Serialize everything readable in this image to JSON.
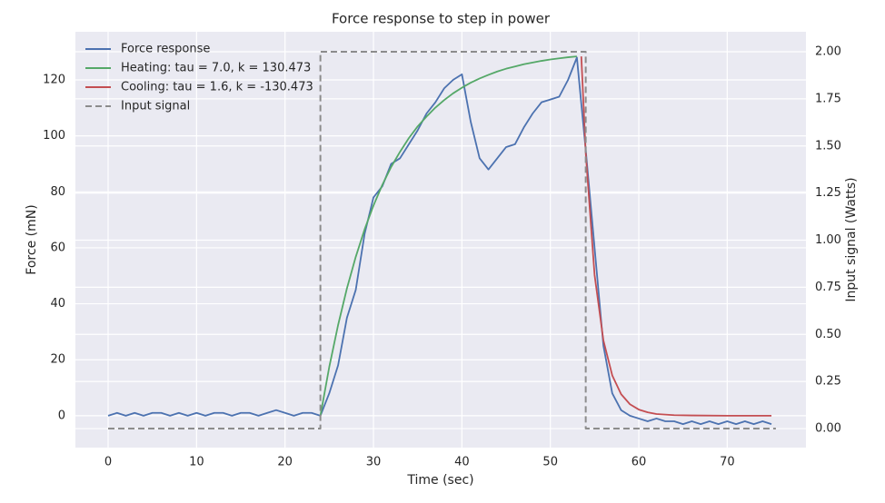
{
  "chart_data": {
    "type": "line",
    "title": "Force response to step in power",
    "xlabel": "Time (sec)",
    "ylabel": "Force (mN)",
    "y2label": "Input signal (Watts)",
    "xlim": [
      -3.7,
      78.9
    ],
    "ylim": [
      -11.4,
      137.2
    ],
    "y2lim": [
      -0.101,
      2.106
    ],
    "xticks": [
      0,
      10,
      20,
      30,
      40,
      50,
      60,
      70
    ],
    "yticks": [
      0,
      20,
      40,
      60,
      80,
      100,
      120
    ],
    "y2ticks": [
      {
        "value": 0,
        "label": "0.00"
      },
      {
        "value": 0.25,
        "label": "0.25"
      },
      {
        "value": 0.5,
        "label": "0.50"
      },
      {
        "value": 0.75,
        "label": "0.75"
      },
      {
        "value": 1,
        "label": "1.00"
      },
      {
        "value": 1.25,
        "label": "1.25"
      },
      {
        "value": 1.5,
        "label": "1.50"
      },
      {
        "value": 1.75,
        "label": "1.75"
      },
      {
        "value": 2,
        "label": "2.00"
      }
    ],
    "grid": true,
    "legend": "upper left",
    "series": [
      {
        "name": "Force response",
        "color": "#4c72b0",
        "axis": "y",
        "x": [
          0,
          1,
          2,
          3,
          4,
          5,
          6,
          7,
          8,
          9,
          10,
          11,
          12,
          13,
          14,
          15,
          16,
          17,
          18,
          19,
          20,
          21,
          22,
          23,
          24,
          25,
          26,
          27,
          28,
          29,
          30,
          31,
          32,
          33,
          34,
          35,
          36,
          37,
          38,
          39,
          40,
          41,
          42,
          43,
          44,
          45,
          46,
          47,
          48,
          49,
          50,
          51,
          52,
          53,
          54,
          55,
          56,
          57,
          58,
          59,
          60,
          61,
          62,
          63,
          64,
          65,
          66,
          67,
          68,
          69,
          70,
          71,
          72,
          73,
          74,
          75
        ],
        "values": [
          0,
          1,
          0,
          1,
          0,
          1,
          1,
          0,
          1,
          0,
          1,
          0,
          1,
          1,
          0,
          1,
          1,
          0,
          1,
          2,
          1,
          0,
          1,
          1,
          0,
          8,
          18,
          35,
          45,
          65,
          78,
          82,
          90,
          92,
          97,
          102,
          108,
          112,
          117,
          120,
          122,
          105,
          92,
          88,
          92,
          96,
          97,
          103,
          108,
          112,
          113,
          114,
          120,
          128,
          95,
          60,
          25,
          8,
          2,
          0,
          -1,
          -2,
          -1,
          -2,
          -2,
          -3,
          -2,
          -3,
          -2,
          -3,
          -2,
          -3,
          -2,
          -3,
          -2,
          -3
        ]
      },
      {
        "name": "Heating: tau = 7.0, k = 130.473",
        "color": "#55a868",
        "axis": "y",
        "x": [
          24,
          25,
          26,
          27,
          28,
          29,
          30,
          31,
          32,
          33,
          34,
          35,
          36,
          37,
          38,
          39,
          40,
          41,
          42,
          43,
          44,
          45,
          46,
          47,
          48,
          49,
          50,
          51,
          52,
          53
        ],
        "values": [
          0,
          17.4,
          32.4,
          45.5,
          56.8,
          66.6,
          75.1,
          82.5,
          88.9,
          94.3,
          99.2,
          103.4,
          106.9,
          110.1,
          112.8,
          115.2,
          117.2,
          119.0,
          120.5,
          121.8,
          123.0,
          124.0,
          124.8,
          125.6,
          126.2,
          126.8,
          127.3,
          127.7,
          128.1,
          128.4
        ]
      },
      {
        "name": "Cooling: tau = 1.6, k = -130.473",
        "color": "#c44e52",
        "axis": "y",
        "x": [
          53.5,
          54,
          55,
          56,
          57,
          58,
          59,
          60,
          61,
          62,
          64,
          66,
          70,
          75
        ],
        "values": [
          128.4,
          93.9,
          50.3,
          26.9,
          14.4,
          7.7,
          4.1,
          2.2,
          1.2,
          0.6,
          0.2,
          0.1,
          0,
          0
        ]
      },
      {
        "name": "Input signal",
        "color": "#8c8c8c",
        "axis": "y2",
        "dashed": true,
        "x": [
          0,
          24,
          24,
          54,
          54,
          75.5
        ],
        "values": [
          0,
          0,
          2,
          2,
          0,
          0
        ]
      }
    ]
  }
}
